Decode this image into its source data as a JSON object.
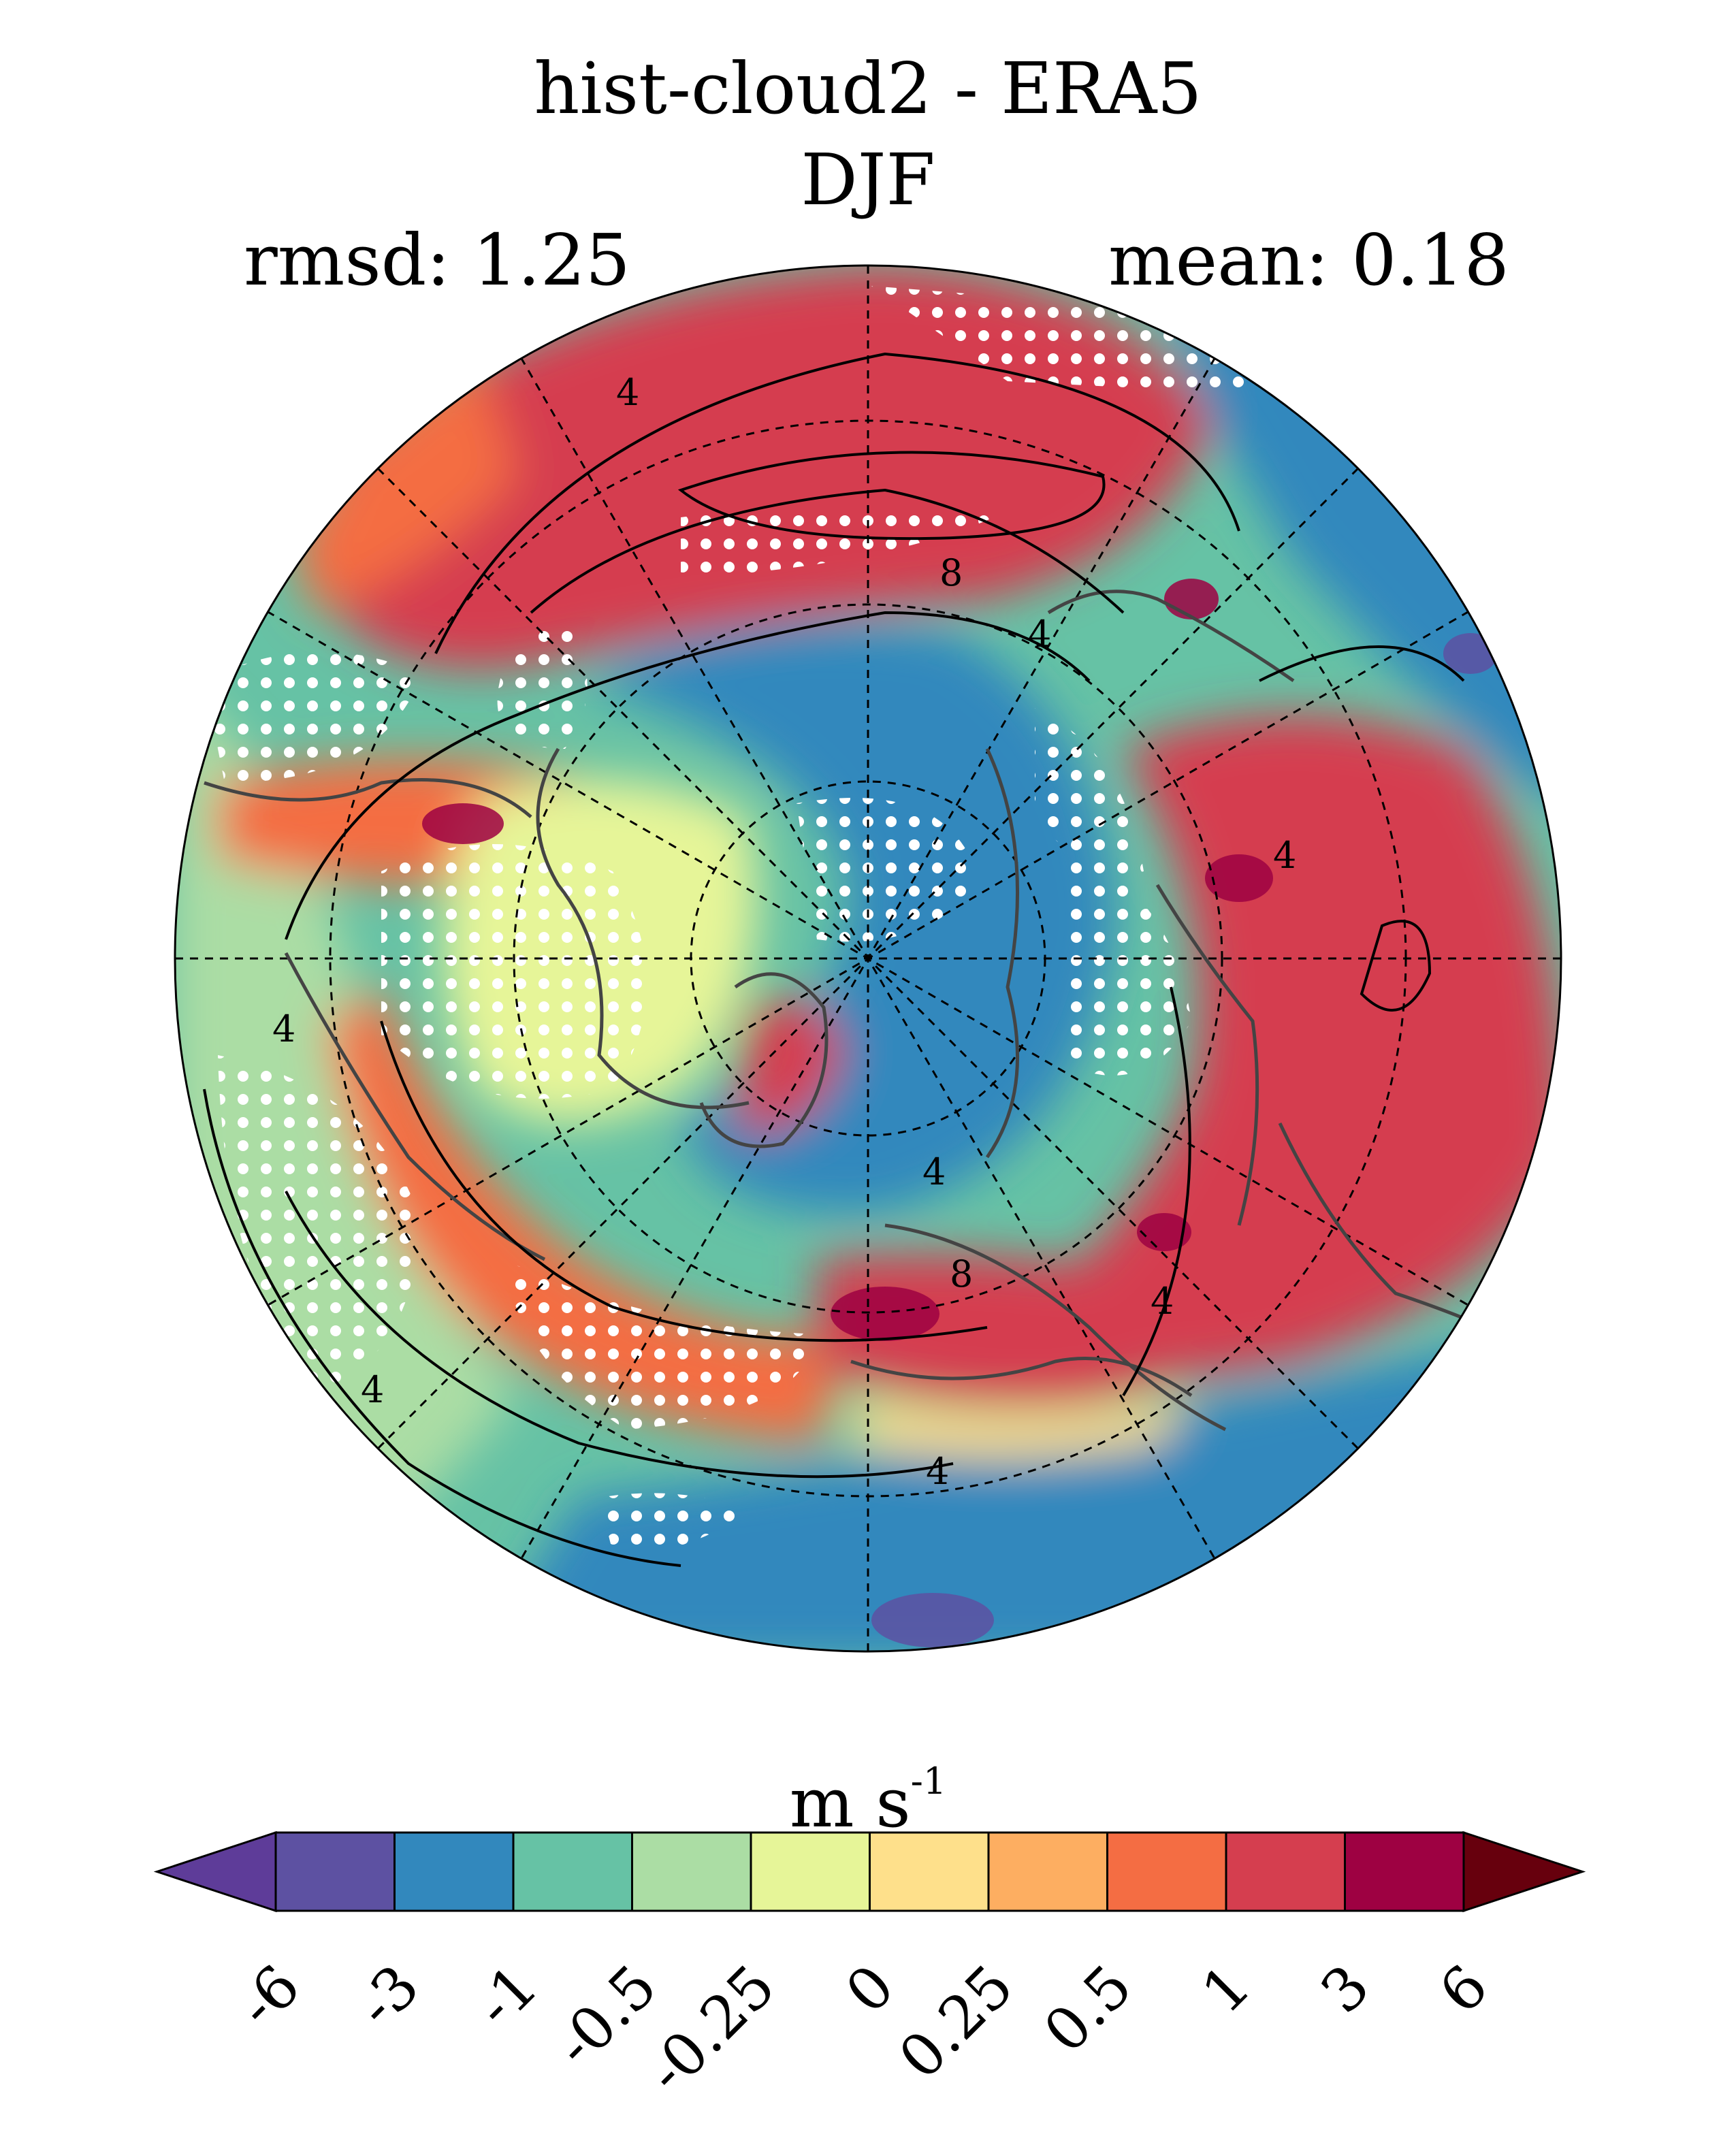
{
  "title": {
    "experiment": "hist-cloud2 - ERA5",
    "season": "DJF"
  },
  "stats": {
    "rmsd_text": "rmsd: 1.25",
    "mean_text": "mean: 0.18"
  },
  "map": {
    "projection": "north-polar-stereographic",
    "contour_labels": [
      "4",
      "8",
      "4",
      "4",
      "4",
      "4",
      "8",
      "4",
      "4",
      "4"
    ],
    "stippling": "white dots mark significant differences",
    "colors": {
      "dark_purple": "#5e3c99",
      "purple": "#5d51a2",
      "blue": "#3288bd",
      "teal": "#66c2a5",
      "light_green": "#abdda4",
      "pale_yellow": "#e6f598",
      "light_yellow": "#fee08b",
      "light_orange": "#fdae61",
      "orange": "#f46d43",
      "red": "#d53e4f",
      "dark_red": "#9e0142",
      "darkest_red": "#67000d"
    }
  },
  "colorbar": {
    "units_base": "m s",
    "units_exponent": "-1",
    "ticks": [
      "-6",
      "-3",
      "-1",
      "-0.5",
      "-0.25",
      "0",
      "0.25",
      "0.5",
      "1",
      "3",
      "6"
    ],
    "segment_colors": [
      "#5e3c99",
      "#5d51a2",
      "#3288bd",
      "#66c2a5",
      "#abdda4",
      "#e6f598",
      "#fee08b",
      "#fdae61",
      "#f46d43",
      "#d53e4f",
      "#9e0142",
      "#67000d"
    ]
  }
}
